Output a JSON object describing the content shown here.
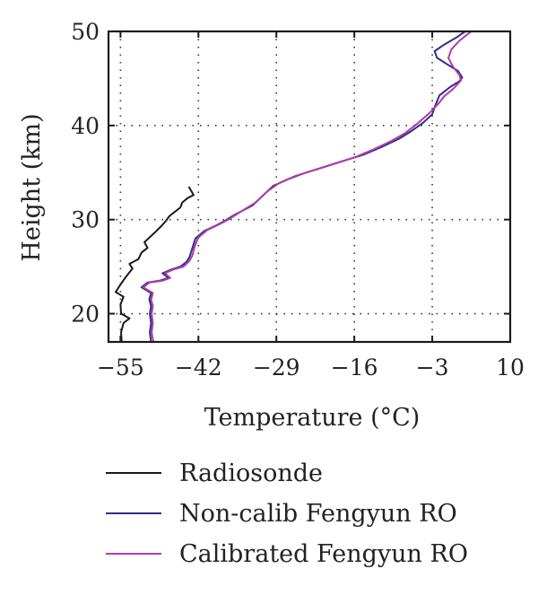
{
  "chart_data": {
    "type": "line",
    "xlabel": "Temperature (°C)",
    "ylabel": "Height (km)",
    "xlim": [
      -57,
      10
    ],
    "ylim": [
      17,
      50
    ],
    "xticks": [
      -55,
      -42,
      -29,
      -16,
      -3,
      10
    ],
    "yticks": [
      20,
      30,
      40,
      50
    ],
    "grid": true,
    "legend_position": "below",
    "series": [
      {
        "name": "Radiosonde",
        "color": "#1a1a1a",
        "points": [
          [
            -54.8,
            17
          ],
          [
            -54.9,
            18
          ],
          [
            -54.5,
            19
          ],
          [
            -53.5,
            19.5
          ],
          [
            -54.9,
            20
          ],
          [
            -55.0,
            21
          ],
          [
            -54.5,
            21.8
          ],
          [
            -55.8,
            22.3
          ],
          [
            -55.0,
            23.1
          ],
          [
            -54.0,
            24
          ],
          [
            -53.0,
            24.8
          ],
          [
            -53.5,
            25.3
          ],
          [
            -52.0,
            25.8
          ],
          [
            -51.5,
            26.5
          ],
          [
            -50.5,
            27
          ],
          [
            -51.0,
            27.6
          ],
          [
            -50.0,
            28.2
          ],
          [
            -49.0,
            28.8
          ],
          [
            -48.2,
            29.3
          ],
          [
            -47.5,
            29.8
          ],
          [
            -46.8,
            30.4
          ],
          [
            -45.8,
            30.9
          ],
          [
            -45.0,
            31.3
          ],
          [
            -44.7,
            31.8
          ],
          [
            -43.8,
            32.3
          ],
          [
            -42.8,
            32.6
          ],
          [
            -43.6,
            33.5
          ]
        ]
      },
      {
        "name": "Non-calib Fengyun RO",
        "color": "#2e2f88",
        "points": [
          [
            -49.9,
            17
          ],
          [
            -50.1,
            18
          ],
          [
            -49.9,
            19
          ],
          [
            -50.1,
            20
          ],
          [
            -49.9,
            20.8
          ],
          [
            -50.2,
            21.5
          ],
          [
            -49.9,
            22.2
          ],
          [
            -51.5,
            22.8
          ],
          [
            -50.5,
            23.3
          ],
          [
            -48.5,
            23.5
          ],
          [
            -47.0,
            23.8
          ],
          [
            -48.0,
            24.3
          ],
          [
            -46.5,
            24.7
          ],
          [
            -45.0,
            25
          ],
          [
            -44.0,
            25.5
          ],
          [
            -43.5,
            26
          ],
          [
            -43.0,
            27
          ],
          [
            -42.5,
            28
          ],
          [
            -41.0,
            28.8
          ],
          [
            -39.0,
            29.4
          ],
          [
            -37.5,
            29.9
          ],
          [
            -36.0,
            30.5
          ],
          [
            -33.0,
            31.5
          ],
          [
            -31.5,
            32.4
          ],
          [
            -29.5,
            33.6
          ],
          [
            -27.0,
            34.3
          ],
          [
            -24.5,
            34.9
          ],
          [
            -21.0,
            35.6
          ],
          [
            -17.5,
            36.3
          ],
          [
            -14.5,
            36.9
          ],
          [
            -11.5,
            37.7
          ],
          [
            -8.5,
            38.6
          ],
          [
            -6.5,
            39.4
          ],
          [
            -4.5,
            40.3
          ],
          [
            -3.0,
            41.2
          ],
          [
            -2.5,
            42.1
          ],
          [
            -1.8,
            43.2
          ],
          [
            0.0,
            44.1
          ],
          [
            1.5,
            44.7
          ],
          [
            2.0,
            45.1
          ],
          [
            1.3,
            45.8
          ],
          [
            -0.5,
            46.5
          ],
          [
            -2.2,
            47.2
          ],
          [
            -2.6,
            47.9
          ],
          [
            -1.0,
            48.6
          ],
          [
            0.9,
            49.3
          ],
          [
            2.5,
            50
          ]
        ]
      },
      {
        "name": "Calibrated Fengyun RO",
        "color": "#b03aa8",
        "points": [
          [
            -49.5,
            17
          ],
          [
            -49.8,
            18
          ],
          [
            -49.6,
            19
          ],
          [
            -49.8,
            20
          ],
          [
            -49.6,
            20.8
          ],
          [
            -49.9,
            21.5
          ],
          [
            -49.6,
            22.2
          ],
          [
            -51.2,
            22.8
          ],
          [
            -50.2,
            23.3
          ],
          [
            -48.0,
            23.5
          ],
          [
            -46.7,
            23.8
          ],
          [
            -47.6,
            24.3
          ],
          [
            -46.2,
            24.7
          ],
          [
            -44.5,
            25
          ],
          [
            -43.5,
            25.6
          ],
          [
            -43.0,
            26.2
          ],
          [
            -42.6,
            27.2
          ],
          [
            -42.0,
            28.1
          ],
          [
            -40.5,
            28.9
          ],
          [
            -38.5,
            29.5
          ],
          [
            -37.0,
            30
          ],
          [
            -35.3,
            30.7
          ],
          [
            -32.5,
            31.8
          ],
          [
            -30.5,
            33
          ],
          [
            -28.5,
            33.9
          ],
          [
            -26.0,
            34.6
          ],
          [
            -23.0,
            35.2
          ],
          [
            -19.5,
            35.9
          ],
          [
            -16.0,
            36.6
          ],
          [
            -13.0,
            37.4
          ],
          [
            -10.0,
            38.3
          ],
          [
            -7.5,
            39.2
          ],
          [
            -5.5,
            40.2
          ],
          [
            -3.5,
            41.3
          ],
          [
            -2.0,
            42.3
          ],
          [
            -1.0,
            43.1
          ],
          [
            0.5,
            43.9
          ],
          [
            1.8,
            44.8
          ],
          [
            1.5,
            45.4
          ],
          [
            0.4,
            46.3
          ],
          [
            -0.3,
            47.2
          ],
          [
            0.2,
            48.1
          ],
          [
            1.5,
            49.0
          ],
          [
            3.5,
            50
          ]
        ]
      }
    ]
  }
}
